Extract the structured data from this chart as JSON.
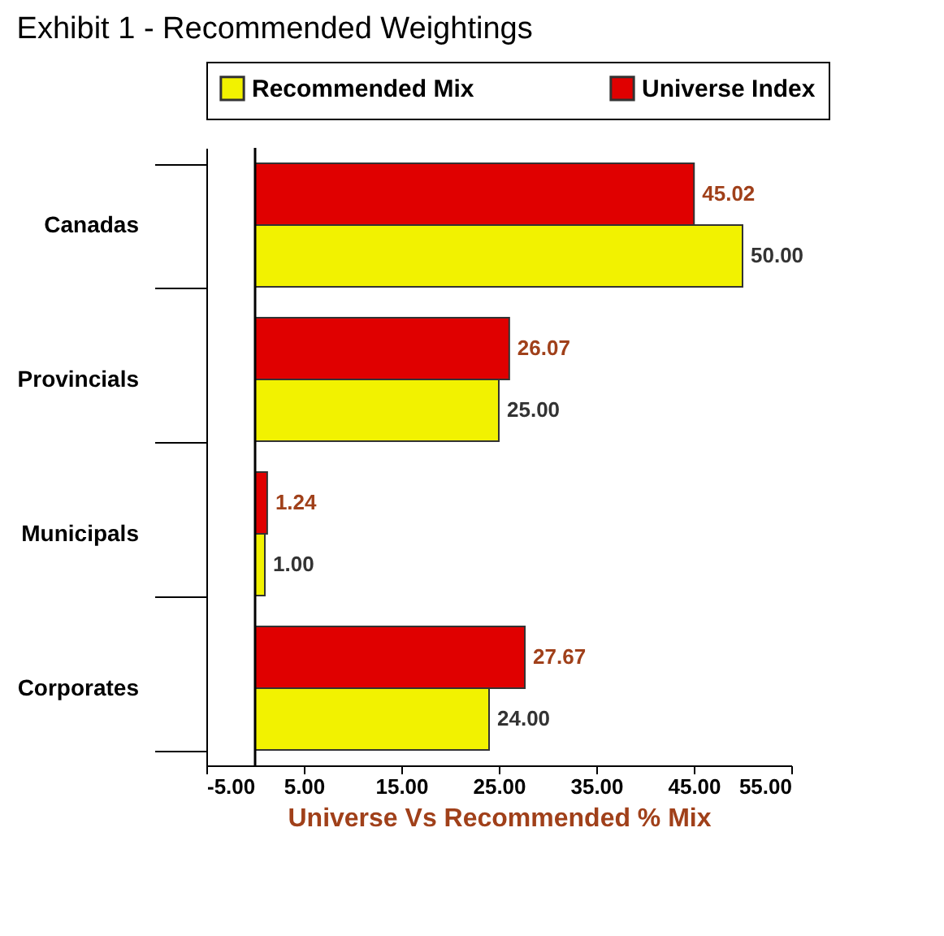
{
  "chart_data": {
    "type": "bar",
    "orientation": "horizontal",
    "title": "Exhibit 1 - Recommended Weightings",
    "xlabel": "Universe Vs Recommended % Mix",
    "categories": [
      "Canadas",
      "Provincials",
      "Municipals",
      "Corporates"
    ],
    "series": [
      {
        "name": "Universe Index",
        "color": "#e00000",
        "values": [
          45.02,
          26.07,
          1.24,
          27.67
        ],
        "value_labels": [
          "45.02",
          "26.07",
          "1.24",
          "27.67"
        ]
      },
      {
        "name": "Recommended Mix",
        "color": "#f2f200",
        "values": [
          50.0,
          25.0,
          1.0,
          24.0
        ],
        "value_labels": [
          "50.00",
          "25.00",
          "1.00",
          "24.00"
        ]
      }
    ],
    "xlim": [
      -5,
      55
    ],
    "xticks": [
      {
        "value": -5,
        "label": "-5.00"
      },
      {
        "value": 5,
        "label": "5.00"
      },
      {
        "value": 15,
        "label": "15.00"
      },
      {
        "value": 25,
        "label": "25.00"
      },
      {
        "value": 35,
        "label": "35.00"
      },
      {
        "value": 45,
        "label": "45.00"
      },
      {
        "value": 55,
        "label": "55.00"
      }
    ],
    "ref_lines": [
      {
        "axis": "x",
        "value": 0
      }
    ],
    "legend": "top",
    "grid": false
  }
}
